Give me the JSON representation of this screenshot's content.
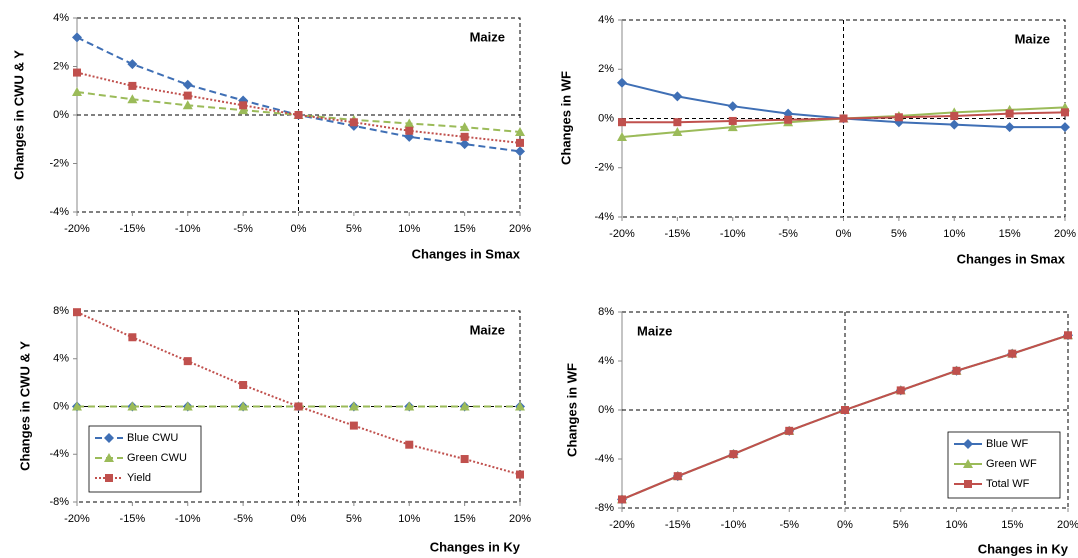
{
  "chart_data": [
    {
      "type": "line",
      "x_label": "Changes in Smax",
      "y_label": "Changes in CWU & Y",
      "annotation": "Maize",
      "annotation_corner": "upper right",
      "categories": [
        "-20%",
        "-15%",
        "-10%",
        "-5%",
        "0%",
        "5%",
        "10%",
        "15%",
        "20%"
      ],
      "ylim": [
        -4,
        4
      ],
      "yticks": [
        {
          "value": -4,
          "label": "-4%"
        },
        {
          "value": -2,
          "label": "-2%"
        },
        {
          "value": 0,
          "label": "0%"
        },
        {
          "value": 2,
          "label": "2%"
        },
        {
          "value": 4,
          "label": "4%"
        }
      ],
      "series": [
        {
          "color": "#3f6fb5",
          "line_style": "dashed",
          "marker": "diamond",
          "values": [
            3.2,
            2.1,
            1.25,
            0.6,
            0,
            -0.45,
            -0.9,
            -1.2,
            -1.5
          ]
        },
        {
          "color": "#9bbb59",
          "line_style": "dashed",
          "marker": "triangle",
          "values": [
            0.95,
            0.65,
            0.4,
            0.2,
            0,
            -0.2,
            -0.35,
            -0.5,
            -0.7
          ]
        },
        {
          "color": "#c0504d",
          "line_style": "dotted",
          "marker": "square",
          "values": [
            1.75,
            1.2,
            0.8,
            0.4,
            0,
            -0.3,
            -0.65,
            -0.9,
            -1.15
          ]
        }
      ]
    },
    {
      "type": "line",
      "x_label": "Changes in Smax",
      "y_label": "Changes in WF",
      "annotation": "Maize",
      "annotation_corner": "upper right",
      "categories": [
        "-20%",
        "-15%",
        "-10%",
        "-5%",
        "0%",
        "5%",
        "10%",
        "15%",
        "20%"
      ],
      "ylim": [
        -4,
        4
      ],
      "yticks": [
        {
          "value": -4,
          "label": "-4%"
        },
        {
          "value": -2,
          "label": "-2%"
        },
        {
          "value": 0,
          "label": "0%"
        },
        {
          "value": 2,
          "label": "2%"
        },
        {
          "value": 4,
          "label": "4%"
        }
      ],
      "series": [
        {
          "color": "#3f6fb5",
          "line_style": "solid",
          "marker": "diamond",
          "values": [
            1.45,
            0.9,
            0.5,
            0.2,
            0,
            -0.15,
            -0.25,
            -0.35,
            -0.35
          ]
        },
        {
          "color": "#9bbb59",
          "line_style": "solid",
          "marker": "triangle",
          "values": [
            -0.75,
            -0.55,
            -0.35,
            -0.15,
            0,
            0.1,
            0.25,
            0.35,
            0.45
          ]
        },
        {
          "color": "#c0504d",
          "line_style": "solid",
          "marker": "square",
          "values": [
            -0.15,
            -0.15,
            -0.1,
            -0.05,
            0,
            0.05,
            0.1,
            0.2,
            0.25
          ]
        }
      ]
    },
    {
      "type": "line",
      "x_label": "Changes in Ky",
      "y_label": "Changes in CWU & Y",
      "annotation": "Maize",
      "annotation_corner": "upper right",
      "legend": "lower left",
      "categories": [
        "-20%",
        "-15%",
        "-10%",
        "-5%",
        "0%",
        "5%",
        "10%",
        "15%",
        "20%"
      ],
      "ylim": [
        -8,
        8
      ],
      "yticks": [
        {
          "value": -8,
          "label": "-8%"
        },
        {
          "value": -4,
          "label": "-4%"
        },
        {
          "value": 0,
          "label": "0%"
        },
        {
          "value": 4,
          "label": "4%"
        },
        {
          "value": 8,
          "label": "8%"
        }
      ],
      "series": [
        {
          "name": "Blue CWU",
          "color": "#3f6fb5",
          "line_style": "dashed",
          "marker": "diamond",
          "values": [
            0,
            0,
            0,
            0,
            0,
            0,
            0,
            0,
            0
          ]
        },
        {
          "name": "Green CWU",
          "color": "#9bbb59",
          "line_style": "dashed",
          "marker": "triangle",
          "values": [
            0,
            0,
            0,
            0,
            0,
            0,
            0,
            0,
            0
          ]
        },
        {
          "name": "Yield",
          "color": "#c0504d",
          "line_style": "dotted",
          "marker": "square",
          "values": [
            7.9,
            5.8,
            3.8,
            1.8,
            0,
            -1.6,
            -3.2,
            -4.4,
            -5.7
          ]
        }
      ]
    },
    {
      "type": "line",
      "x_label": "Changes in Ky",
      "y_label": "Changes in WF",
      "annotation": "Maize",
      "annotation_corner": "upper left",
      "legend": "lower right",
      "categories": [
        "-20%",
        "-15%",
        "-10%",
        "-5%",
        "0%",
        "5%",
        "10%",
        "15%",
        "20%"
      ],
      "ylim": [
        -8,
        8
      ],
      "yticks": [
        {
          "value": -8,
          "label": "-8%"
        },
        {
          "value": -4,
          "label": "-4%"
        },
        {
          "value": 0,
          "label": "0%"
        },
        {
          "value": 4,
          "label": "4%"
        },
        {
          "value": 8,
          "label": "8%"
        }
      ],
      "series": [
        {
          "name": "Blue WF",
          "color": "#3f6fb5",
          "line_style": "solid",
          "marker": "diamond",
          "values": [
            -7.3,
            -5.4,
            -3.6,
            -1.7,
            0,
            1.6,
            3.2,
            4.6,
            6.1
          ]
        },
        {
          "name": "Green WF",
          "color": "#9bbb59",
          "line_style": "solid",
          "marker": "triangle",
          "values": [
            -7.3,
            -5.4,
            -3.6,
            -1.7,
            0,
            1.6,
            3.2,
            4.6,
            6.1
          ]
        },
        {
          "name": "Total WF",
          "color": "#c0504d",
          "line_style": "solid",
          "marker": "square",
          "values": [
            -7.3,
            -5.4,
            -3.6,
            -1.7,
            0,
            1.6,
            3.2,
            4.6,
            6.1
          ]
        }
      ]
    }
  ]
}
